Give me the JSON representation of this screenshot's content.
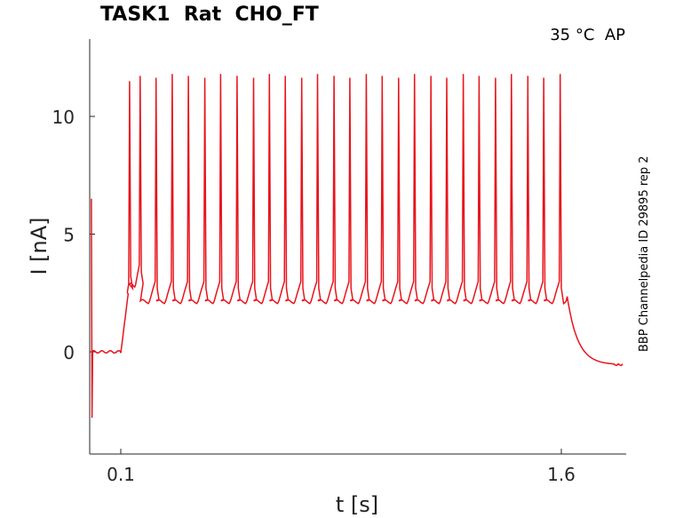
{
  "title": "TASK1  Rat  CHO_FT",
  "condition": "35 °C  AP",
  "side_label": "BBP Channelpedia ID 29895 rep 2",
  "chart_data": {
    "type": "line",
    "xlabel": "t [s]",
    "ylabel": "I [nA]",
    "x_ticks": [
      0.1,
      1.6
    ],
    "x_tick_labels": [
      "0.1",
      "1.6"
    ],
    "y_ticks": [
      0,
      5,
      10
    ],
    "y_tick_labels": [
      "0",
      "5",
      "10"
    ],
    "xlim": [
      -0.0,
      1.81
    ],
    "ylim": [
      -4.3,
      13.3
    ],
    "grid": false,
    "line_color": "#e8141c",
    "series": [
      {
        "description_free": true,
        "baseline_before": 0.0,
        "step_on_time": 0.1,
        "step_off_time": 1.62,
        "initial_transient_peak": 11.5,
        "first_trough": 2.8,
        "spike_times": [
          0.13,
          0.166,
          0.22,
          0.275,
          0.33,
          0.386,
          0.44,
          0.496,
          0.552,
          0.606,
          0.66,
          0.716,
          0.77,
          0.826,
          0.88,
          0.936,
          0.99,
          1.046,
          1.1,
          1.156,
          1.21,
          1.266,
          1.32,
          1.376,
          1.43,
          1.486,
          1.54,
          1.596
        ],
        "spike_peak": 11.8,
        "trough_level": 2.1,
        "final_level": -0.55
      }
    ]
  }
}
